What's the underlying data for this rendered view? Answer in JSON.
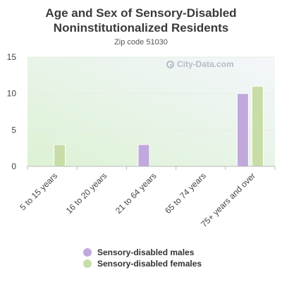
{
  "title": "Age and Sex of Sensory-Disabled Noninstitutionalized Residents",
  "subtitle": "Zip code 51030",
  "watermark": "City-Data.com",
  "legend": [
    {
      "label": "Sensory-disabled males",
      "color": "#c0a8dc"
    },
    {
      "label": "Sensory-disabled females",
      "color": "#c8dca8"
    }
  ],
  "chart_data": {
    "type": "bar",
    "categories": [
      "5 to 15 years",
      "16 to 20 years",
      "21 to 64 years",
      "65 to 74 years",
      "75+ years and over"
    ],
    "series": [
      {
        "name": "Sensory-disabled males",
        "values": [
          0,
          0,
          3,
          0,
          10
        ],
        "color": "#c0a8dc"
      },
      {
        "name": "Sensory-disabled females",
        "values": [
          3,
          0,
          0,
          0,
          11
        ],
        "color": "#c8dca8"
      }
    ],
    "ylim": [
      0,
      15
    ],
    "yticks": [
      0,
      5,
      10,
      15
    ],
    "grid": true,
    "legend_position": "bottom"
  }
}
